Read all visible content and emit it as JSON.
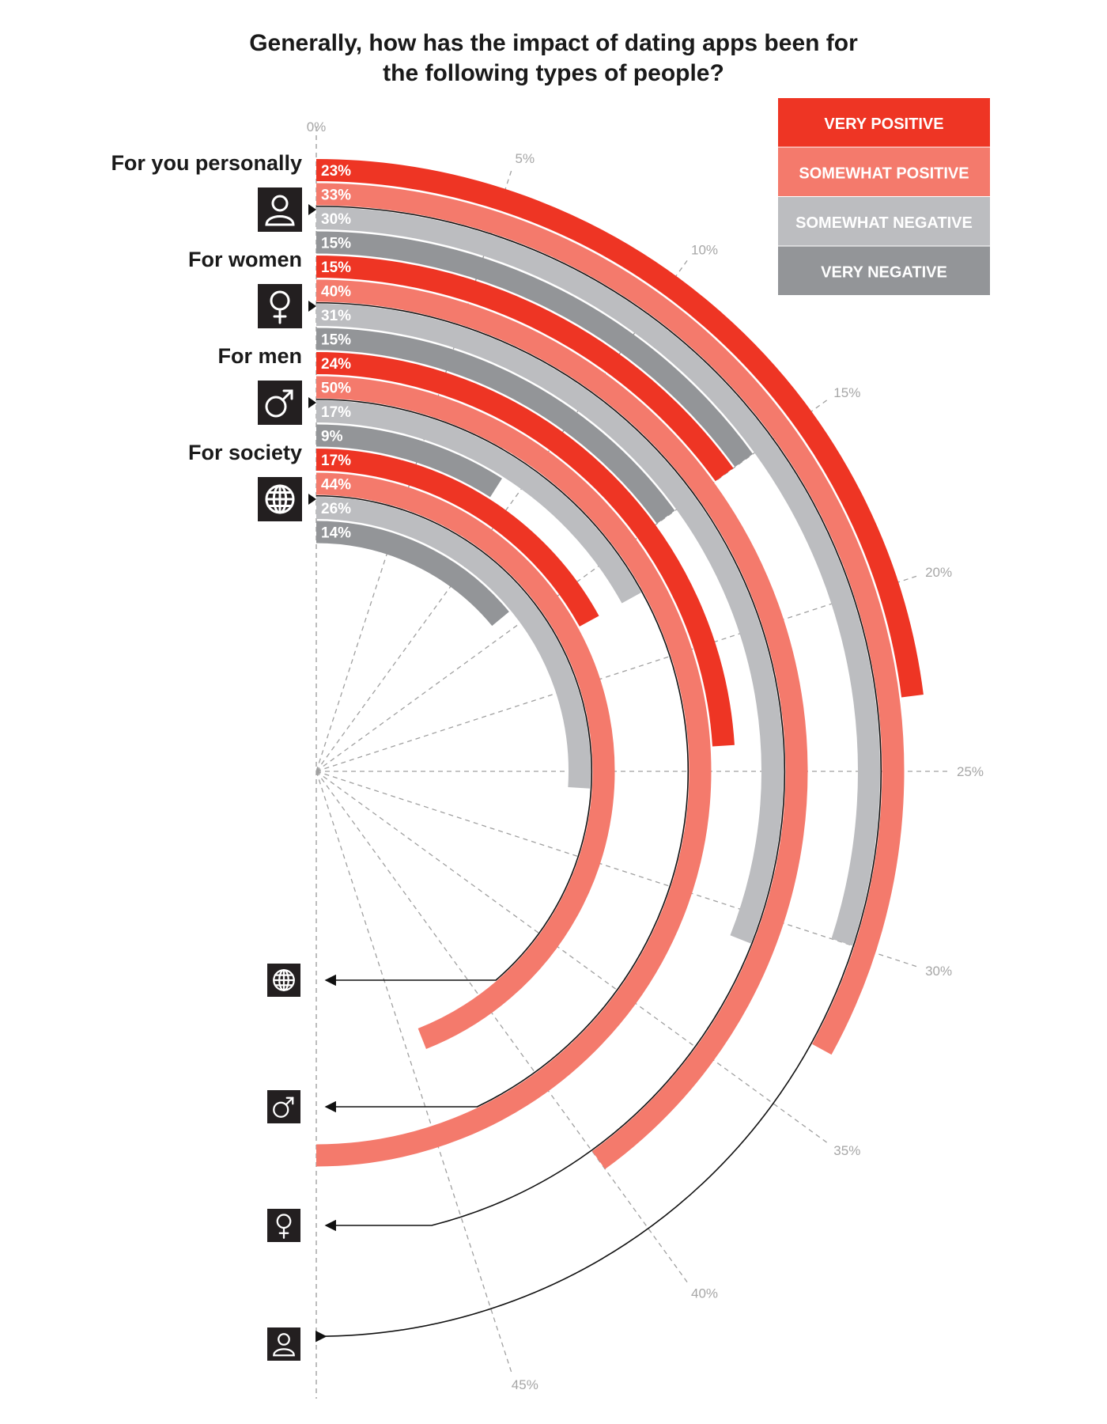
{
  "chart_data": {
    "type": "radial-bar",
    "title_lines": [
      "Generally, how has the impact of dating apps been for",
      "the following types of people?"
    ],
    "angular_axis": {
      "min": 0,
      "max": 50,
      "ticks": [
        0,
        5,
        10,
        15,
        20,
        25,
        30,
        35,
        40,
        45
      ],
      "tick_labels": [
        "0%",
        "5%",
        "10%",
        "15%",
        "20%",
        "25%",
        "30%",
        "35%",
        "40%",
        "45%"
      ]
    },
    "legend": [
      {
        "key": "very_positive",
        "label": "VERY POSITIVE",
        "color": "#ee3524"
      },
      {
        "key": "somewhat_positive",
        "label": "SOMEWHAT POSITIVE",
        "color": "#f47a6c"
      },
      {
        "key": "somewhat_negative",
        "label": "SOMEWHAT NEGATIVE",
        "color": "#bcbdc0"
      },
      {
        "key": "very_negative",
        "label": "VERY NEGATIVE",
        "color": "#939598"
      }
    ],
    "groups": [
      {
        "label": "For you personally",
        "icon": "person-icon",
        "values": [
          23,
          33,
          30,
          15
        ],
        "value_labels": [
          "23%",
          "33%",
          "30%",
          "15%"
        ]
      },
      {
        "label": "For women",
        "icon": "female-icon",
        "values": [
          15,
          40,
          31,
          15
        ],
        "value_labels": [
          "15%",
          "40%",
          "31%",
          "15%"
        ]
      },
      {
        "label": "For men",
        "icon": "male-icon",
        "values": [
          24,
          50,
          17,
          9
        ],
        "value_labels": [
          "24%",
          "50%",
          "17%",
          "9%"
        ]
      },
      {
        "label": "For society",
        "icon": "globe-icon",
        "values": [
          17,
          44,
          26,
          14
        ],
        "value_labels": [
          "17%",
          "44%",
          "26%",
          "14%"
        ]
      }
    ]
  }
}
